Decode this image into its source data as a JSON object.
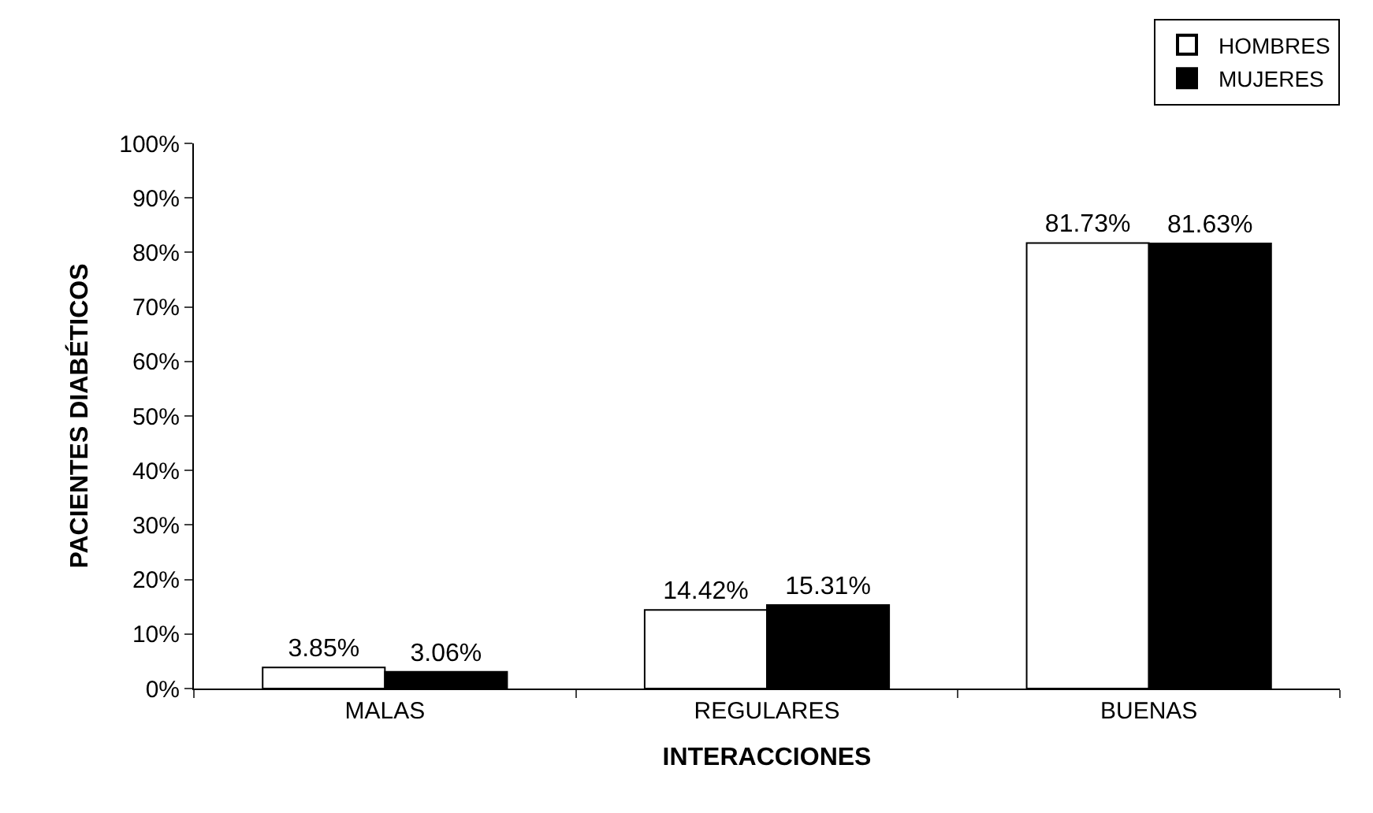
{
  "chart_data": {
    "type": "bar",
    "xlabel": "INTERACCIONES",
    "ylabel": "PACIENTES DIABÉTICOS",
    "categories": [
      "MALAS",
      "REGULARES",
      "BUENAS"
    ],
    "series": [
      {
        "name": "HOMBRES",
        "color": "#ffffff",
        "values": [
          3.85,
          14.42,
          81.73
        ],
        "value_labels": [
          "3.85%",
          "14.42%",
          "81.73%"
        ]
      },
      {
        "name": "MUJERES",
        "color": "#000000",
        "values": [
          3.06,
          15.31,
          81.63
        ],
        "value_labels": [
          "3.06%",
          "15.31%",
          "81.63%"
        ]
      }
    ],
    "ylim": [
      0,
      100
    ],
    "yticks": [
      {
        "value": 0,
        "label": "0%"
      },
      {
        "value": 10,
        "label": "10%"
      },
      {
        "value": 20,
        "label": "20%"
      },
      {
        "value": 30,
        "label": "30%"
      },
      {
        "value": 40,
        "label": "40%"
      },
      {
        "value": 50,
        "label": "50%"
      },
      {
        "value": 60,
        "label": "60%"
      },
      {
        "value": 70,
        "label": "70%"
      },
      {
        "value": 80,
        "label": "80%"
      },
      {
        "value": 90,
        "label": "90%"
      },
      {
        "value": 100,
        "label": "100%"
      }
    ],
    "grid": false,
    "legend": "top right"
  }
}
